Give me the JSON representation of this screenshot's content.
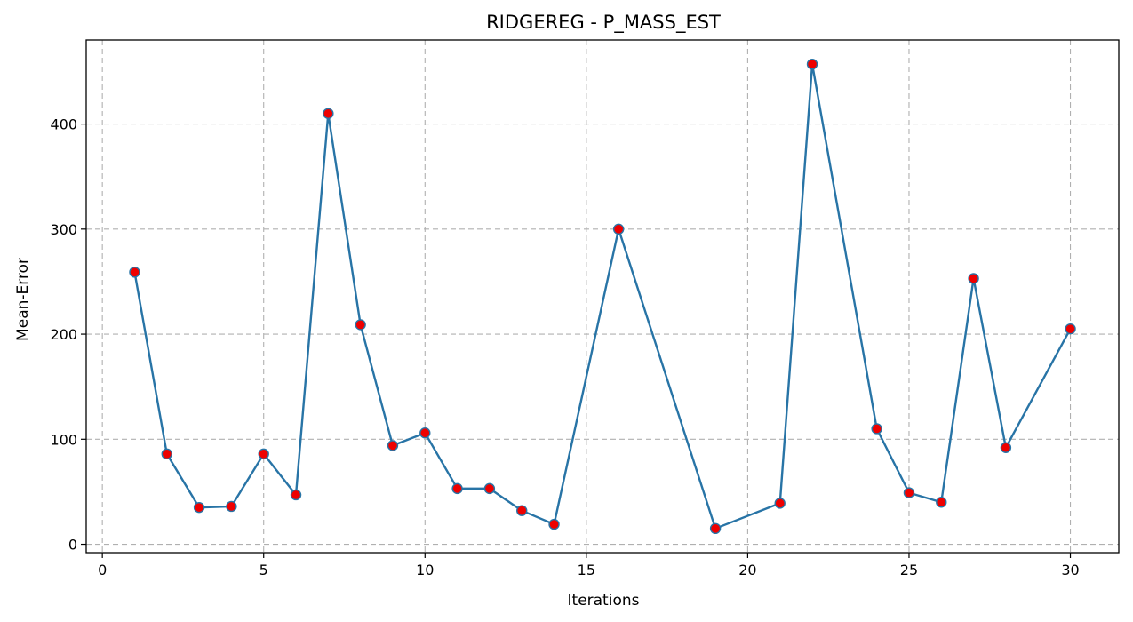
{
  "chart_data": {
    "type": "line",
    "title": "RIDGEREG - P_MASS_EST",
    "xlabel": "Iterations",
    "ylabel": "Mean-Error",
    "xlim": [
      -0.5,
      31.5
    ],
    "ylim": [
      -8,
      480
    ],
    "xticks": [
      0,
      5,
      10,
      15,
      20,
      25,
      30
    ],
    "yticks": [
      0,
      100,
      200,
      300,
      400
    ],
    "grid": true,
    "series": [
      {
        "x": [
          1,
          2,
          3,
          4,
          5,
          6,
          7,
          8,
          9,
          10,
          11,
          12,
          13,
          14,
          16,
          19,
          21,
          22,
          24,
          25,
          26,
          27,
          28,
          30
        ],
        "y": [
          259,
          86,
          35,
          36,
          86,
          47,
          410,
          209,
          94,
          106,
          53,
          53,
          32,
          19,
          300,
          15,
          39,
          457,
          110,
          49,
          40,
          253,
          92,
          205
        ],
        "line_color": "#2874a6",
        "marker_face": "#ee0000",
        "marker_edge": "#2874a6"
      }
    ]
  }
}
